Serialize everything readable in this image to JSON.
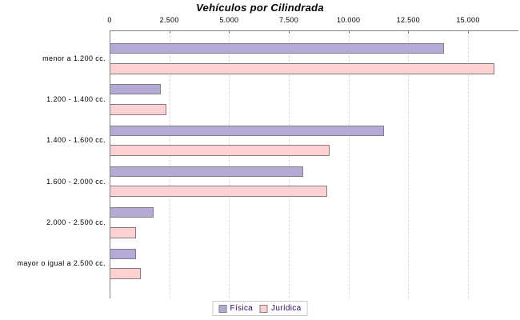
{
  "chart_data": {
    "type": "bar",
    "orientation": "horizontal",
    "title": "Vehículos por Cilindrada",
    "categories": [
      "menor a 1.200 cc.",
      "1.200 - 1.400 cc.",
      "1.400 - 1.600 cc.",
      "1.600 - 2.000 cc.",
      "2.000 - 2.500 cc.",
      "mayor o igual a 2.500 cc."
    ],
    "series": [
      {
        "name": "Física",
        "color": "#b5aad6",
        "values": [
          14000,
          2150,
          11500,
          8100,
          1850,
          1100
        ]
      },
      {
        "name": "Jurídica",
        "color": "#fdd1d1",
        "values": [
          16100,
          2380,
          9200,
          9100,
          1100,
          1300
        ]
      }
    ],
    "x_ticks": [
      0,
      2500,
      5000,
      7500,
      10000,
      12500,
      15000
    ],
    "x_tick_labels": [
      "0",
      "2.500",
      "5.000",
      "7.500",
      "10.000",
      "12.500",
      "15.000"
    ],
    "xlim": [
      0,
      17100
    ],
    "grid": "vertical-dashed",
    "legend_position": "bottom-center",
    "colors": {
      "axis": "#808080",
      "gridline": "#d9d9d9",
      "bar_border": "#7f7f7f",
      "legend_text": "#330066"
    }
  }
}
